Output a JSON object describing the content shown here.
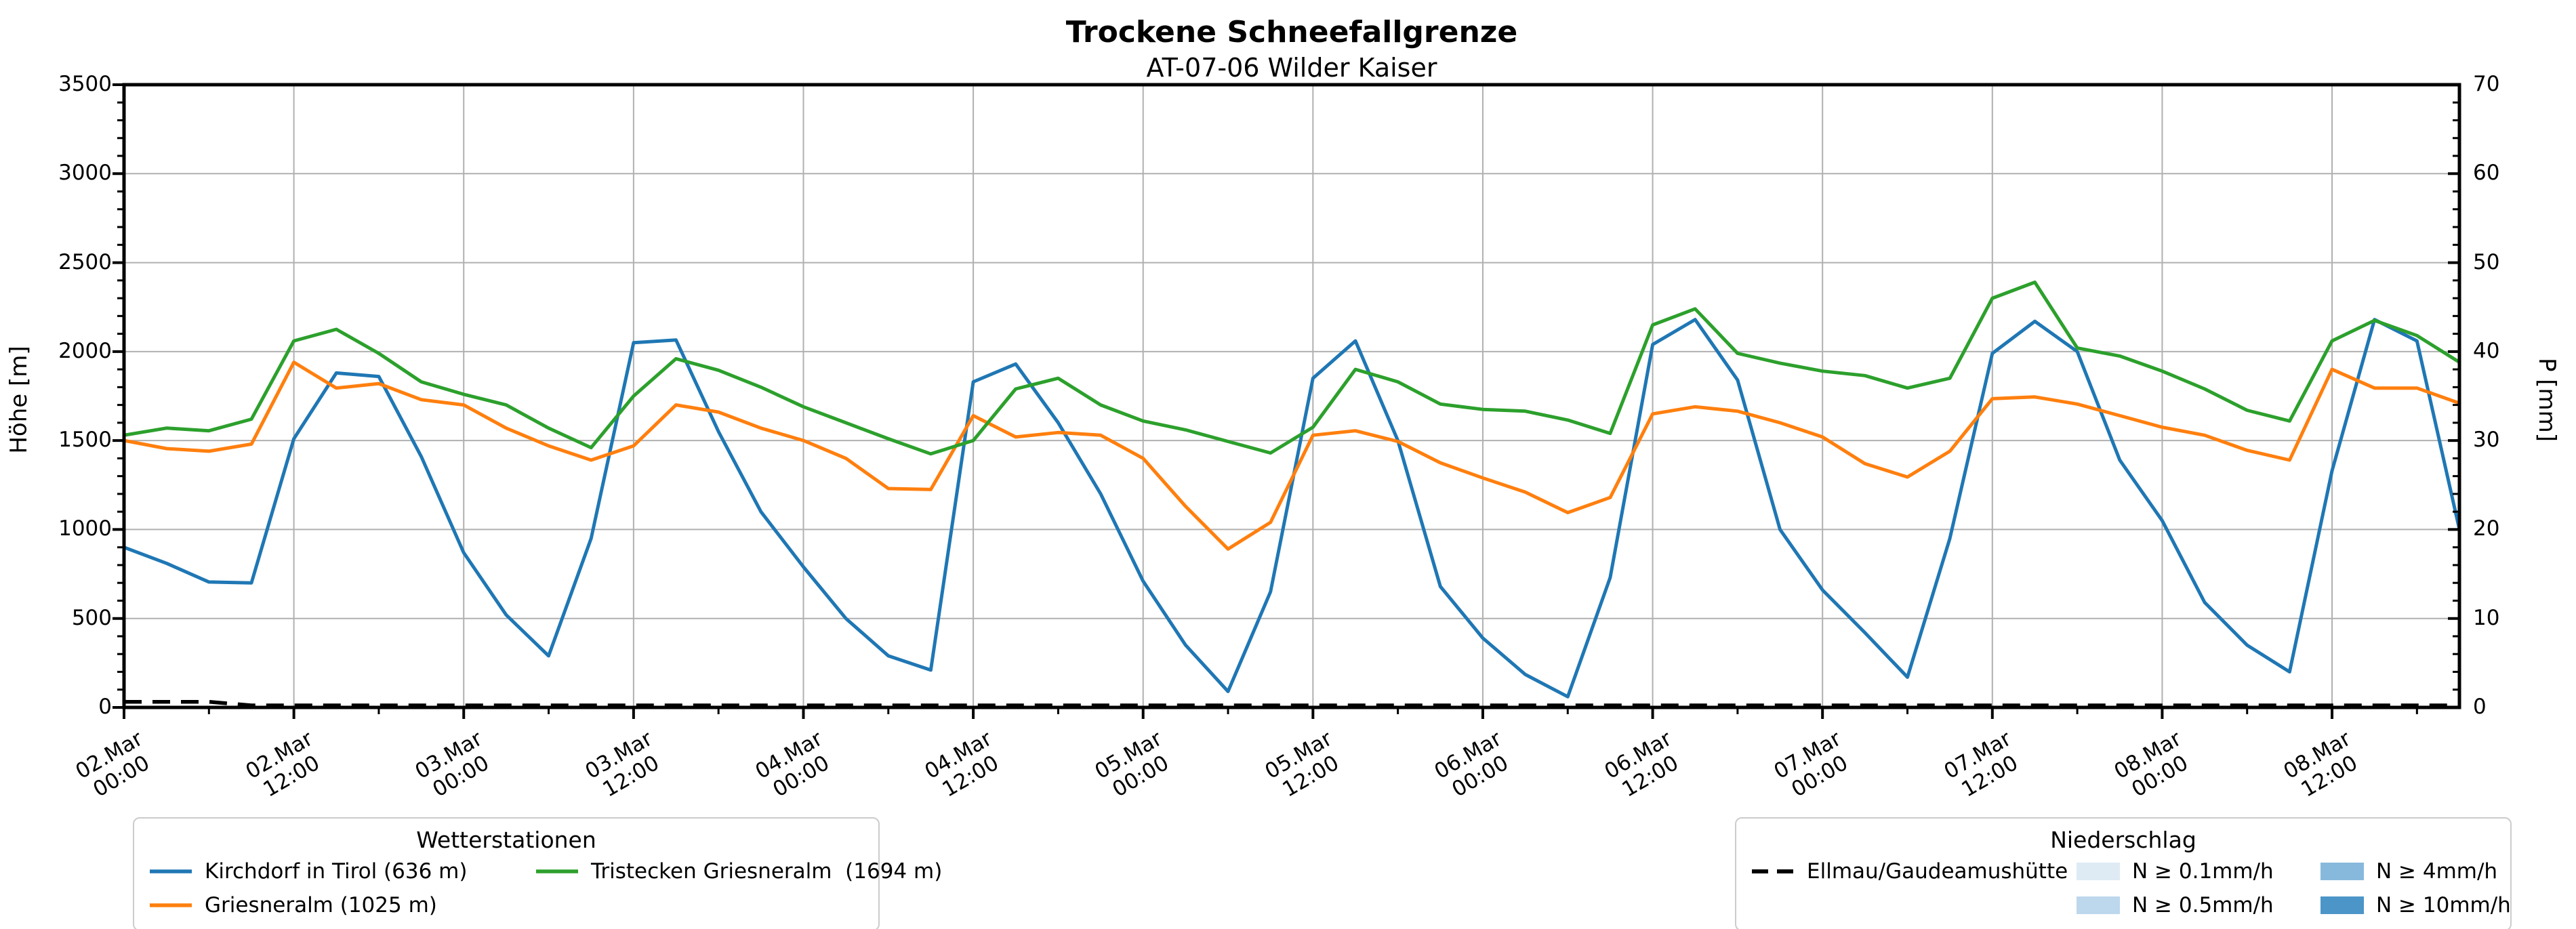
{
  "title": "Trockene Schneefallgrenze",
  "subtitle": "AT-07-06 Wilder Kaiser",
  "axes": {
    "ylabel_left": "Höhe [m]",
    "ylabel_right": "P [mm]",
    "yticks_left": [
      0,
      500,
      1000,
      1500,
      2000,
      2500,
      3000,
      3500
    ],
    "yticks_right": [
      0,
      10,
      20,
      30,
      40,
      50,
      60,
      70
    ]
  },
  "chart_data": {
    "type": "line",
    "title": "Trockene Schneefallgrenze",
    "subtitle": "AT-07-06 Wilder Kaiser",
    "xlabel": "",
    "ylabel": "Höhe [m]",
    "ylabel_right": "P [mm]",
    "ylim": [
      0,
      3500
    ],
    "ylim_right": [
      0,
      70
    ],
    "grid": true,
    "x_unit": "hours since 02.Mar 00:00",
    "x_range_hours": [
      0,
      165
    ],
    "x": [
      0,
      3,
      6,
      9,
      12,
      15,
      18,
      21,
      24,
      27,
      30,
      33,
      36,
      39,
      42,
      45,
      48,
      51,
      54,
      57,
      60,
      63,
      66,
      69,
      72,
      75,
      78,
      81,
      84,
      87,
      90,
      93,
      96,
      99,
      102,
      105,
      108,
      111,
      114,
      117,
      120,
      123,
      126,
      129,
      132,
      135,
      138,
      141,
      144,
      147,
      150,
      153,
      156,
      159,
      162,
      165
    ],
    "xtick_labels": [
      "02.Mar\n00:00",
      "02.Mar\n12:00",
      "03.Mar\n00:00",
      "03.Mar\n12:00",
      "04.Mar\n00:00",
      "04.Mar\n12:00",
      "05.Mar\n00:00",
      "05.Mar\n12:00",
      "06.Mar\n00:00",
      "06.Mar\n12:00",
      "07.Mar\n00:00",
      "07.Mar\n12:00",
      "08.Mar\n00:00",
      "08.Mar\n12:00"
    ],
    "xtick_hours": [
      0,
      12,
      24,
      36,
      48,
      60,
      72,
      84,
      96,
      108,
      120,
      132,
      144,
      156
    ],
    "series": [
      {
        "name": "Kirchdorf in Tirol (636 m)",
        "color": "#1f77b4",
        "style": "solid",
        "values": [
          900,
          810,
          705,
          700,
          1510,
          1880,
          1860,
          1410,
          870,
          520,
          290,
          950,
          2050,
          2065,
          1550,
          1100,
          790,
          500,
          290,
          210,
          1830,
          1930,
          1600,
          1200,
          710,
          350,
          90,
          650,
          1850,
          2060,
          1500,
          680,
          390,
          185,
          60,
          730,
          2040,
          2180,
          1840,
          1000,
          660,
          420,
          170,
          950,
          1990,
          2170,
          2000,
          1390,
          1050,
          590,
          350,
          200,
          1330,
          2180,
          2060,
          1000
        ]
      },
      {
        "name": "Griesneralm (1025 m)",
        "color": "#ff7f0e",
        "style": "solid",
        "values": [
          1500,
          1455,
          1440,
          1480,
          1940,
          1795,
          1820,
          1730,
          1700,
          1570,
          1470,
          1390,
          1470,
          1700,
          1660,
          1570,
          1500,
          1400,
          1230,
          1225,
          1640,
          1520,
          1545,
          1530,
          1400,
          1130,
          890,
          1040,
          1530,
          1555,
          1495,
          1375,
          1290,
          1210,
          1095,
          1180,
          1650,
          1690,
          1665,
          1600,
          1520,
          1370,
          1295,
          1440,
          1735,
          1745,
          1705,
          1640,
          1575,
          1530,
          1445,
          1390,
          1900,
          1795,
          1795,
          1710
        ]
      },
      {
        "name": "Tristecken Griesneralm  (1694 m)",
        "color": "#2ca02c",
        "style": "solid",
        "values": [
          1530,
          1570,
          1555,
          1620,
          2060,
          2125,
          1990,
          1830,
          1760,
          1700,
          1570,
          1460,
          1750,
          1960,
          1895,
          1800,
          1690,
          1600,
          1510,
          1425,
          1500,
          1790,
          1850,
          1700,
          1610,
          1560,
          1495,
          1430,
          1575,
          1900,
          1830,
          1705,
          1675,
          1665,
          1615,
          1540,
          2150,
          2240,
          1990,
          1935,
          1890,
          1865,
          1795,
          1850,
          2300,
          2390,
          2020,
          1975,
          1890,
          1790,
          1670,
          1610,
          2060,
          2175,
          2090,
          1940
        ]
      },
      {
        "name": "Ellmau/Gaudeamushütte",
        "color": "#000000",
        "style": "dashed",
        "values": [
          20,
          20,
          20,
          0,
          0,
          0,
          0,
          0,
          0,
          0,
          0,
          0,
          0,
          0,
          0,
          0,
          0,
          0,
          0,
          0,
          0,
          0,
          0,
          0,
          0,
          0,
          0,
          0,
          0,
          0,
          0,
          0,
          0,
          0,
          0,
          0,
          0,
          0,
          0,
          0,
          0,
          0,
          0,
          0,
          0,
          0,
          0,
          0,
          0,
          0,
          0,
          0,
          0,
          0,
          0,
          0
        ]
      }
    ],
    "precipitation_classes": [
      {
        "label": "N ≥ 0.1mm/h",
        "color": "#deebf5"
      },
      {
        "label": "N ≥ 0.5mm/h",
        "color": "#bdd7ec"
      },
      {
        "label": "N ≥ 4mm/h",
        "color": "#87b9dc"
      },
      {
        "label": "N ≥ 10mm/h",
        "color": "#4b95c8"
      }
    ],
    "legend_position": "below"
  },
  "legend_weather": {
    "title": "Wetterstationen",
    "items": [
      "Kirchdorf in Tirol (636 m)",
      "Griesneralm (1025 m)",
      "Tristecken Griesneralm  (1694 m)"
    ]
  },
  "legend_precip": {
    "title": "Niederschlag",
    "dashed_item": "Ellmau/Gaudeamushütte",
    "items": [
      "N ≥ 0.1mm/h",
      "N ≥ 0.5mm/h",
      "N ≥ 4mm/h",
      "N ≥ 10mm/h"
    ]
  },
  "colors": {
    "grid": "#b0b0b0",
    "spine": "#000000",
    "kirchdorf": "#1f77b4",
    "griesneralm": "#ff7f0e",
    "tristecken": "#2ca02c",
    "ellmau": "#000000"
  }
}
